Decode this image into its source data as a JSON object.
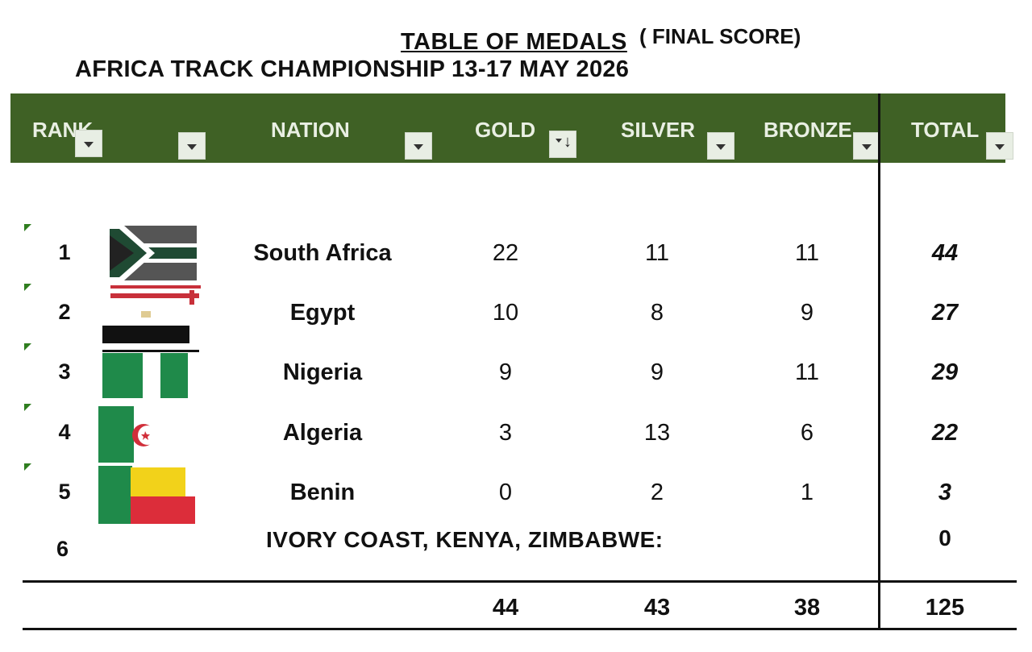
{
  "title": {
    "line1": "TABLE OF MEDALS",
    "line1_suffix": "( FINAL SCORE)",
    "line2": "AFRICA TRACK CHAMPIONSHIP 13-17 MAY 2026"
  },
  "columns": {
    "rank": "RANK",
    "nation": "NATION",
    "gold": "GOLD",
    "silver": "SILVER",
    "bronze": "BRONZE",
    "total": "TOTAL"
  },
  "colors": {
    "header_green": "#3f6125",
    "header_text": "#e9efe3"
  },
  "rows": [
    {
      "rank": "1",
      "nation": "South Africa",
      "flag": "south-africa-flag",
      "gold": "22",
      "silver": "11",
      "bronze": "11",
      "total": "44"
    },
    {
      "rank": "2",
      "nation": "Egypt",
      "flag": "egypt-flag",
      "gold": "10",
      "silver": "8",
      "bronze": "9",
      "total": "27"
    },
    {
      "rank": "3",
      "nation": "Nigeria",
      "flag": "nigeria-flag",
      "gold": "9",
      "silver": "9",
      "bronze": "11",
      "total": "29"
    },
    {
      "rank": "4",
      "nation": "Algeria",
      "flag": "algeria-flag",
      "gold": "3",
      "silver": "13",
      "bronze": "6",
      "total": "22"
    },
    {
      "rank": "5",
      "nation": "Benin",
      "flag": "benin-flag",
      "gold": "0",
      "silver": "2",
      "bronze": "1",
      "total": "3"
    }
  ],
  "others": {
    "rank": "6",
    "nations": "IVORY COAST, KENYA, ZIMBABWE:",
    "total": "0"
  },
  "totals": {
    "gold": "44",
    "silver": "43",
    "bronze": "38",
    "total": "125"
  }
}
